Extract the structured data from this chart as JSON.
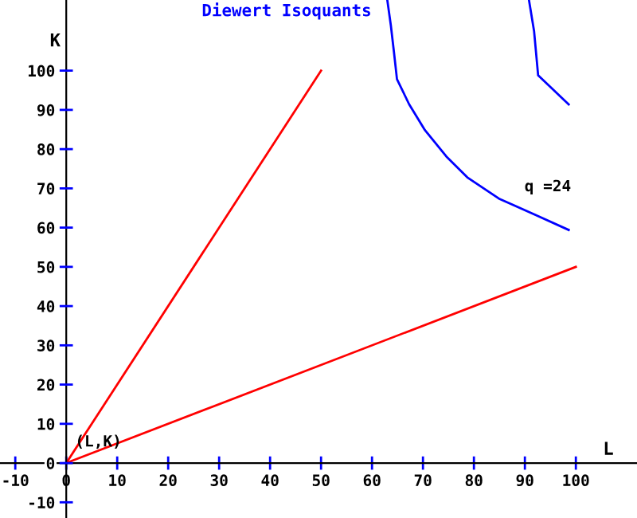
{
  "chart_data": {
    "type": "line",
    "title": "Diewert Isoquants",
    "xlabel": "L",
    "ylabel": "K",
    "xlim": [
      -13,
      112
    ],
    "ylim": [
      -14,
      118
    ],
    "xticks": [
      -10,
      0,
      10,
      20,
      30,
      40,
      50,
      60,
      70,
      80,
      90,
      100
    ],
    "yticks": [
      -10,
      0,
      10,
      20,
      30,
      40,
      50,
      60,
      70,
      80,
      90,
      100
    ],
    "grid": false,
    "legend": false,
    "line_style": "solid",
    "series": [
      {
        "color": "#0000ff",
        "x": [
          63.0,
          63.7,
          64.3,
          64.9,
          67.3,
          70.4,
          74.6,
          78.7,
          84.9,
          92.1,
          98.6
        ],
        "values": [
          118,
          111.5,
          104.8,
          97.8,
          91.4,
          84.8,
          78.1,
          72.8,
          67.4,
          63.2,
          59.4
        ]
      },
      {
        "color": "#0000ff",
        "x": [
          90.8,
          91.8,
          92.6,
          98.6
        ],
        "values": [
          118,
          110.1,
          98.8,
          91.4
        ]
      },
      {
        "color": "#ff0000",
        "x": [
          0,
          50
        ],
        "values": [
          0,
          100
        ]
      },
      {
        "color": "#ff0000",
        "x": [
          0,
          100
        ],
        "values": [
          0,
          50
        ]
      }
    ],
    "annotations": [
      {
        "text": "q =24",
        "x": 98.6,
        "y": 59.4
      },
      {
        "text": "(L,K)",
        "x": 0,
        "y": 0
      }
    ]
  }
}
